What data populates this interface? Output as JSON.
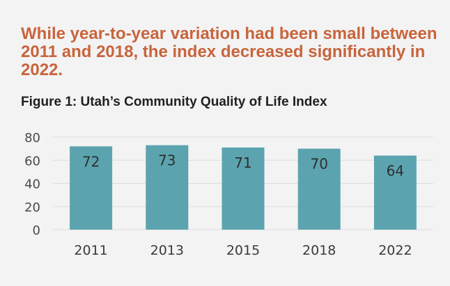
{
  "headline": "While year-to-year variation had been small between 2011 and 2018, the index decreased significantly in 2022.",
  "colors": {
    "headline": "#c8643c",
    "bar": "#5ba4af",
    "grid": "#dcdcdc",
    "background": "#f3f3f3"
  },
  "chart_data": {
    "type": "bar",
    "title": "Figure 1: Utah’s Community Quality of Life Index",
    "categories": [
      "2011",
      "2013",
      "2015",
      "2018",
      "2022"
    ],
    "values": [
      72,
      73,
      71,
      70,
      64
    ],
    "data_labels": [
      "72",
      "73",
      "71",
      "70",
      "64"
    ],
    "ylim": [
      0,
      80
    ],
    "yticks": [
      "0",
      "20",
      "40",
      "60",
      "80"
    ],
    "grid": true,
    "legend": "none"
  }
}
